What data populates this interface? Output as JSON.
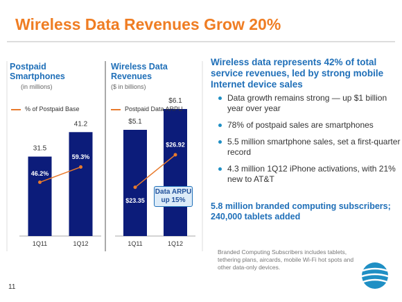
{
  "slide": {
    "title": "Wireless Data Revenues Grow 20%",
    "page_number": "11"
  },
  "chart_data": [
    {
      "type": "bar",
      "title": "Postpaid Smartphones",
      "subtitle": "(in millions)",
      "categories": [
        "1Q11",
        "1Q12"
      ],
      "ylim": [
        0,
        60
      ],
      "y2lim": [
        0,
        130
      ],
      "series": [
        {
          "color": "#0c1c7a",
          "values": [
            31.5,
            41.2
          ]
        },
        {
          "name": "% of Postpaid Base",
          "type": "line",
          "axis": "y2",
          "color": "#e87a2c",
          "values": [
            46.2,
            59.3
          ],
          "value_labels": [
            "46.2%",
            "59.3%"
          ]
        }
      ]
    },
    {
      "type": "bar",
      "title": "Wireless Data Revenues",
      "subtitle": "($ in billions)",
      "categories": [
        "1Q11",
        "1Q12"
      ],
      "ylim": [
        0,
        7
      ],
      "y2lim": [
        18,
        34
      ],
      "annotation": "Data ARPU up 15%",
      "series": [
        {
          "color": "#0c1c7a",
          "values": [
            5.1,
            6.1
          ],
          "value_labels": [
            "$5.1",
            "$6.1"
          ]
        },
        {
          "name": "Postpaid Data ARPU",
          "type": "line",
          "axis": "y2",
          "color": "#e87a2c",
          "values": [
            23.35,
            26.92
          ],
          "value_labels": [
            "$23.35",
            "$26.92"
          ]
        }
      ]
    }
  ],
  "text_panel": {
    "heading": "Wireless data represents 42% of total service revenues, led by strong mobile Internet device sales",
    "bullets": [
      "Data growth remains strong — up $1 billion year over year",
      "78% of postpaid sales are smartphones",
      "5.5 million smartphone sales, set a first-quarter record",
      "4.3 million 1Q12 iPhone activations, with 21% new to AT&T"
    ],
    "highlight": "5.8 million branded computing subscribers; 240,000 tablets added",
    "footnote": "Branded Computing Subscribers includes tablets, tethering plans, aircards, mobile Wi-Fi hot spots and other data-only devices."
  }
}
